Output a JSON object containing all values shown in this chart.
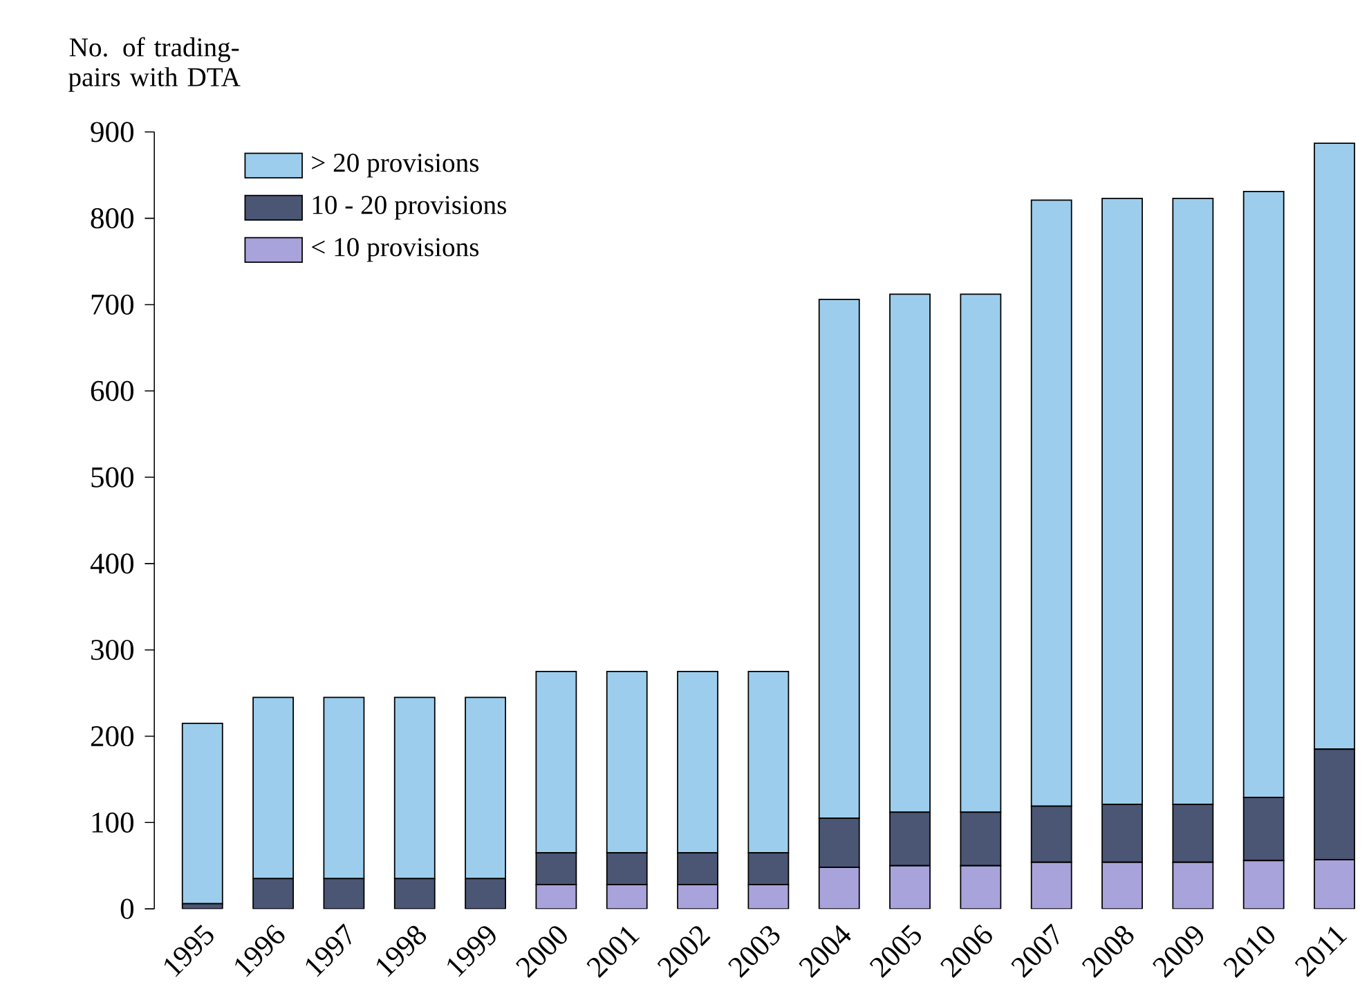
{
  "chart_data": {
    "type": "bar",
    "stacked": true,
    "ylabel": "No. of trading-pairs with DTA",
    "categories": [
      "1995",
      "1996",
      "1997",
      "1998",
      "1999",
      "2000",
      "2001",
      "2002",
      "2003",
      "2004",
      "2005",
      "2006",
      "2007",
      "2008",
      "2009",
      "2010",
      "2011"
    ],
    "series": [
      {
        "name": "< 10 provisions",
        "color": "#a9a3db",
        "values": [
          0,
          0,
          0,
          0,
          0,
          28,
          28,
          28,
          28,
          48,
          50,
          50,
          54,
          54,
          54,
          56,
          57
        ]
      },
      {
        "name": "10 - 20 provisions",
        "color": "#4b5675",
        "values": [
          6,
          35,
          35,
          35,
          35,
          37,
          37,
          37,
          37,
          57,
          62,
          62,
          65,
          67,
          67,
          73,
          128
        ]
      },
      {
        "name": "> 20 provisions",
        "color": "#9dcdec",
        "values": [
          209,
          210,
          210,
          210,
          210,
          210,
          210,
          210,
          210,
          601,
          600,
          600,
          702,
          702,
          702,
          702,
          702
        ]
      }
    ],
    "ylim": [
      0,
      900
    ],
    "yticks": [
      0,
      100,
      200,
      300,
      400,
      500,
      600,
      700,
      800,
      900
    ],
    "legend": "top left"
  }
}
